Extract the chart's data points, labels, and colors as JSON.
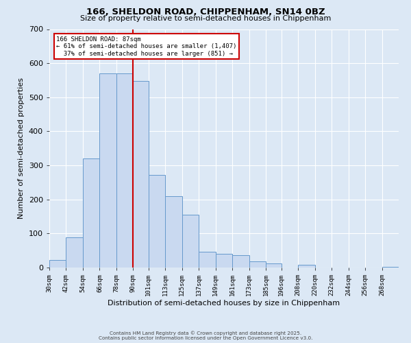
{
  "title1": "166, SHELDON ROAD, CHIPPENHAM, SN14 0BZ",
  "title2": "Size of property relative to semi-detached houses in Chippenham",
  "xlabel": "Distribution of semi-detached houses by size in Chippenham",
  "ylabel": "Number of semi-detached properties",
  "bar_labels": [
    "30sqm",
    "42sqm",
    "54sqm",
    "66sqm",
    "78sqm",
    "90sqm",
    "101sqm",
    "113sqm",
    "125sqm",
    "137sqm",
    "149sqm",
    "161sqm",
    "173sqm",
    "185sqm",
    "196sqm",
    "208sqm",
    "220sqm",
    "232sqm",
    "244sqm",
    "256sqm",
    "268sqm"
  ],
  "bar_values": [
    22,
    89,
    321,
    570,
    570,
    548,
    272,
    210,
    155,
    46,
    40,
    36,
    18,
    12,
    0,
    9,
    0,
    0,
    0,
    0,
    3
  ],
  "bin_edges": [
    30,
    42,
    54,
    66,
    78,
    90,
    101,
    113,
    125,
    137,
    149,
    161,
    173,
    185,
    196,
    208,
    220,
    232,
    244,
    256,
    268,
    280
  ],
  "bar_color": "#c9d9f0",
  "bar_edge_color": "#6699cc",
  "vline_x": 90,
  "vline_color": "#cc0000",
  "annotation_title": "166 SHELDON ROAD: 87sqm",
  "annotation_line1": "← 61% of semi-detached houses are smaller (1,407)",
  "annotation_line2": "  37% of semi-detached houses are larger (851) →",
  "annotation_box_color": "#ffffff",
  "annotation_box_edge": "#cc0000",
  "ylim": [
    0,
    700
  ],
  "yticks": [
    0,
    100,
    200,
    300,
    400,
    500,
    600,
    700
  ],
  "background_color": "#dce8f5",
  "footer1": "Contains HM Land Registry data © Crown copyright and database right 2025.",
  "footer2": "Contains public sector information licensed under the Open Government Licence v3.0."
}
